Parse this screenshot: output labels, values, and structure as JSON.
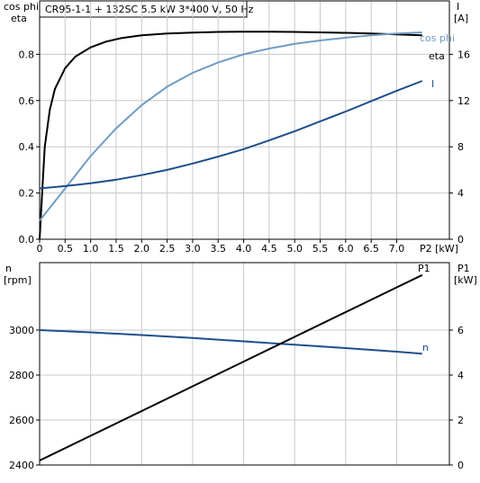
{
  "header": {
    "title": "CR95-1-1 + 132SC   5.5 kW   3*400 V, 50 Hz"
  },
  "chart_data": [
    {
      "type": "line",
      "x_axis": {
        "label": "P2 [kW]",
        "range": [
          0,
          7.8
        ],
        "ticks": [
          "0",
          "0.5",
          "1.0",
          "1.5",
          "2.0",
          "2.5",
          "3.0",
          "3.5",
          "4.0",
          "4.5",
          "5.0",
          "5.5",
          "6.0",
          "6.5",
          "7.0"
        ],
        "tick_values": [
          0,
          0.5,
          1.0,
          1.5,
          2.0,
          2.5,
          3.0,
          3.5,
          4.0,
          4.5,
          5.0,
          5.5,
          6.0,
          6.5,
          7.0
        ]
      },
      "y_axis_left": {
        "label_line1": "cos phi",
        "label_line2": "eta",
        "range": [
          0,
          1.0
        ],
        "ticks": [
          "0.0",
          "0.2",
          "0.4",
          "0.6",
          "0.8"
        ],
        "tick_values": [
          0,
          0.2,
          0.4,
          0.6,
          0.8
        ]
      },
      "y_axis_right": {
        "label_line1": "I",
        "label_line2": "[A]",
        "range": [
          0,
          20
        ],
        "ticks": [
          "0",
          "4",
          "8",
          "12",
          "16"
        ],
        "tick_values": [
          0,
          4,
          8,
          12,
          16
        ]
      },
      "grid": true,
      "series": [
        {
          "name": "eta",
          "axis": "left",
          "color": "#000000",
          "x": [
            0,
            0.05,
            0.1,
            0.2,
            0.3,
            0.5,
            0.7,
            1.0,
            1.3,
            1.6,
            2.0,
            2.5,
            3.0,
            3.5,
            4.0,
            4.5,
            5.0,
            5.5,
            6.0,
            6.5,
            7.0,
            7.5
          ],
          "y": [
            0.0,
            0.2,
            0.4,
            0.56,
            0.65,
            0.74,
            0.79,
            0.83,
            0.855,
            0.87,
            0.882,
            0.89,
            0.894,
            0.897,
            0.898,
            0.898,
            0.897,
            0.895,
            0.893,
            0.89,
            0.886,
            0.882
          ]
        },
        {
          "name": "cos phi",
          "axis": "left",
          "color": "#6f9cc4",
          "x": [
            0,
            0.25,
            0.5,
            0.75,
            1.0,
            1.5,
            2.0,
            2.5,
            3.0,
            3.5,
            4.0,
            4.5,
            5.0,
            5.5,
            6.0,
            6.5,
            7.0,
            7.5
          ],
          "y": [
            0.08,
            0.15,
            0.22,
            0.29,
            0.36,
            0.48,
            0.58,
            0.66,
            0.72,
            0.765,
            0.8,
            0.825,
            0.845,
            0.86,
            0.872,
            0.882,
            0.89,
            0.895
          ]
        },
        {
          "name": "I",
          "axis": "right",
          "color": "#1d4f8c",
          "x": [
            0,
            0.5,
            1.0,
            1.5,
            2.0,
            2.5,
            3.0,
            3.5,
            4.0,
            4.5,
            5.0,
            5.5,
            6.0,
            6.5,
            7.0,
            7.5
          ],
          "y": [
            4.4,
            4.6,
            4.85,
            5.15,
            5.55,
            6.0,
            6.55,
            7.15,
            7.8,
            8.55,
            9.35,
            10.2,
            11.05,
            11.95,
            12.85,
            13.7
          ]
        }
      ]
    },
    {
      "type": "line",
      "x_axis": {
        "range": [
          0,
          7.8
        ]
      },
      "y_axis_left": {
        "label_line1": "n",
        "label_line2": "[rpm]",
        "range": [
          2400,
          3200
        ],
        "ticks": [
          "2400",
          "2600",
          "2800",
          "3000"
        ],
        "tick_values": [
          2400,
          2600,
          2800,
          3000
        ]
      },
      "y_axis_right": {
        "label_line1": "P1",
        "label_line2": "[kW]",
        "range": [
          0,
          8
        ],
        "ticks": [
          "0",
          "2",
          "4",
          "6"
        ],
        "tick_values": [
          0,
          2,
          4,
          6
        ]
      },
      "grid": true,
      "series": [
        {
          "name": "n",
          "axis": "left",
          "color": "#1d4f8c",
          "x": [
            0,
            1.0,
            2.0,
            3.0,
            4.0,
            5.0,
            6.0,
            7.0,
            7.5
          ],
          "y": [
            3000,
            2990,
            2978,
            2965,
            2950,
            2935,
            2920,
            2904,
            2895
          ]
        },
        {
          "name": "P1",
          "axis": "right",
          "color": "#000000",
          "x": [
            0,
            1.0,
            2.0,
            3.0,
            4.0,
            5.0,
            6.0,
            7.0,
            7.5
          ],
          "y": [
            0.2,
            1.3,
            2.4,
            3.5,
            4.6,
            5.7,
            6.8,
            7.9,
            8.45
          ]
        }
      ]
    }
  ]
}
